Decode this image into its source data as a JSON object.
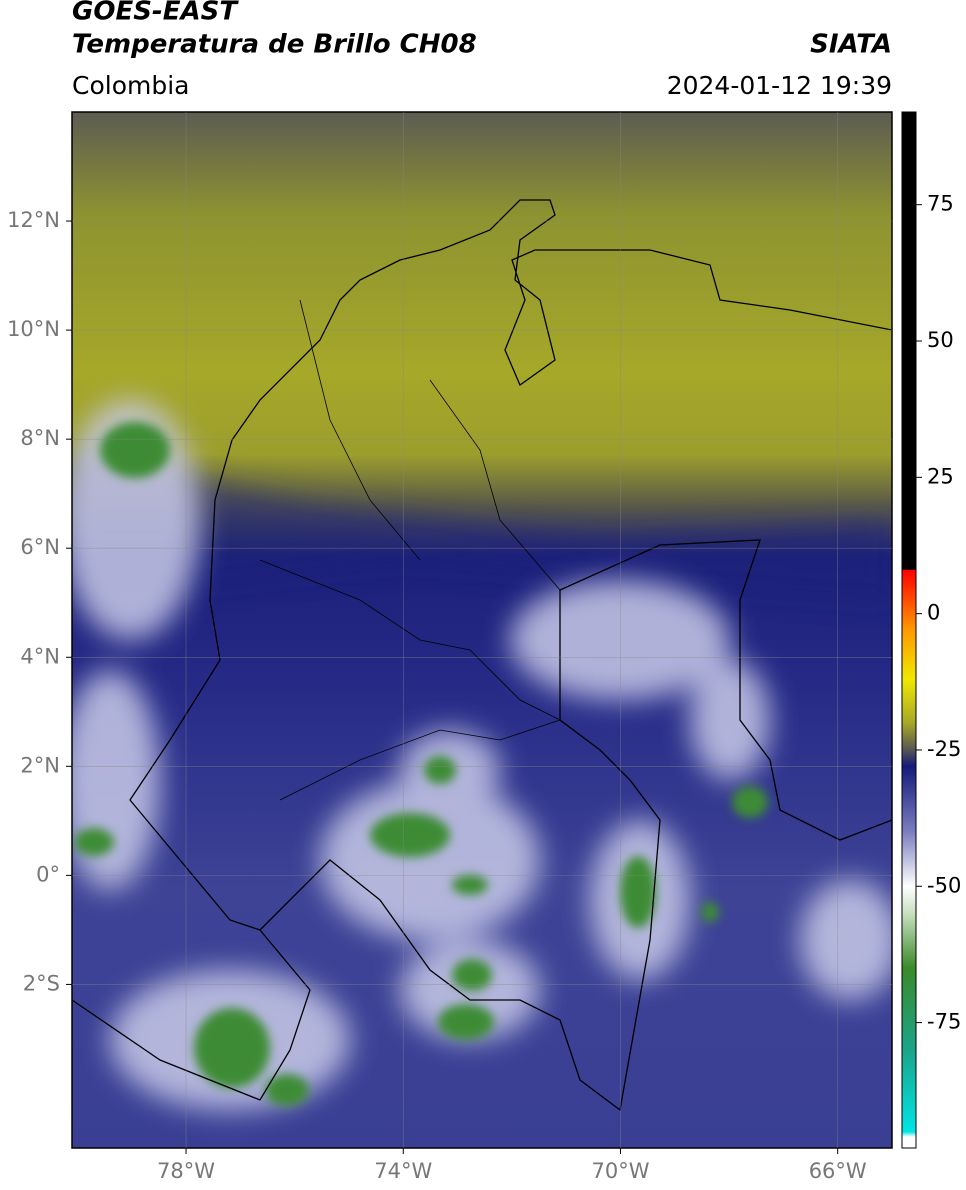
{
  "map": {
    "title": "GOES-EAST",
    "subtitle": "Temperatura de Brillo CH08",
    "brand": "SIATA",
    "region": "Colombia",
    "datetime": "2024-01-12 19:39",
    "xlim": [
      -80.1,
      -65
    ],
    "ylim": [
      -5,
      14
    ],
    "xticks": [
      {
        "value": -78,
        "label": "78°W"
      },
      {
        "value": -74,
        "label": "74°W"
      },
      {
        "value": -70,
        "label": "70°W"
      },
      {
        "value": -66,
        "label": "66°W"
      }
    ],
    "yticks": [
      {
        "value": -2,
        "label": "2°S"
      },
      {
        "value": 0,
        "label": "0°"
      },
      {
        "value": 2,
        "label": "2°N"
      },
      {
        "value": 4,
        "label": "4°N"
      },
      {
        "value": 6,
        "label": "6°N"
      },
      {
        "value": 8,
        "label": "8°N"
      },
      {
        "value": 10,
        "label": "10°N"
      },
      {
        "value": 12,
        "label": "12°N"
      }
    ],
    "grid": true,
    "colorbar": {
      "lim": [
        -98,
        92
      ],
      "ticks": [
        75,
        50,
        25,
        0,
        -25,
        -50,
        -75
      ],
      "stops": [
        {
          "value": -98,
          "color": "#ffffff"
        },
        {
          "value": -96,
          "color": "#ffffff"
        },
        {
          "value": -95,
          "color": "#00e5e5"
        },
        {
          "value": -80,
          "color": "#1aa58a"
        },
        {
          "value": -65,
          "color": "#3a8a2a"
        },
        {
          "value": -55,
          "color": "#c8e0c0"
        },
        {
          "value": -50,
          "color": "#ffffff"
        },
        {
          "value": -40,
          "color": "#7a7ec0"
        },
        {
          "value": -28,
          "color": "#151a7a"
        },
        {
          "value": -25,
          "color": "#555555"
        },
        {
          "value": -20,
          "color": "#a8a828"
        },
        {
          "value": -12,
          "color": "#f0e800"
        },
        {
          "value": -3,
          "color": "#ff9900"
        },
        {
          "value": 8,
          "color": "#ff0000"
        },
        {
          "value": 8.1,
          "color": "#000000"
        },
        {
          "value": 92,
          "color": "#000000"
        }
      ]
    }
  }
}
